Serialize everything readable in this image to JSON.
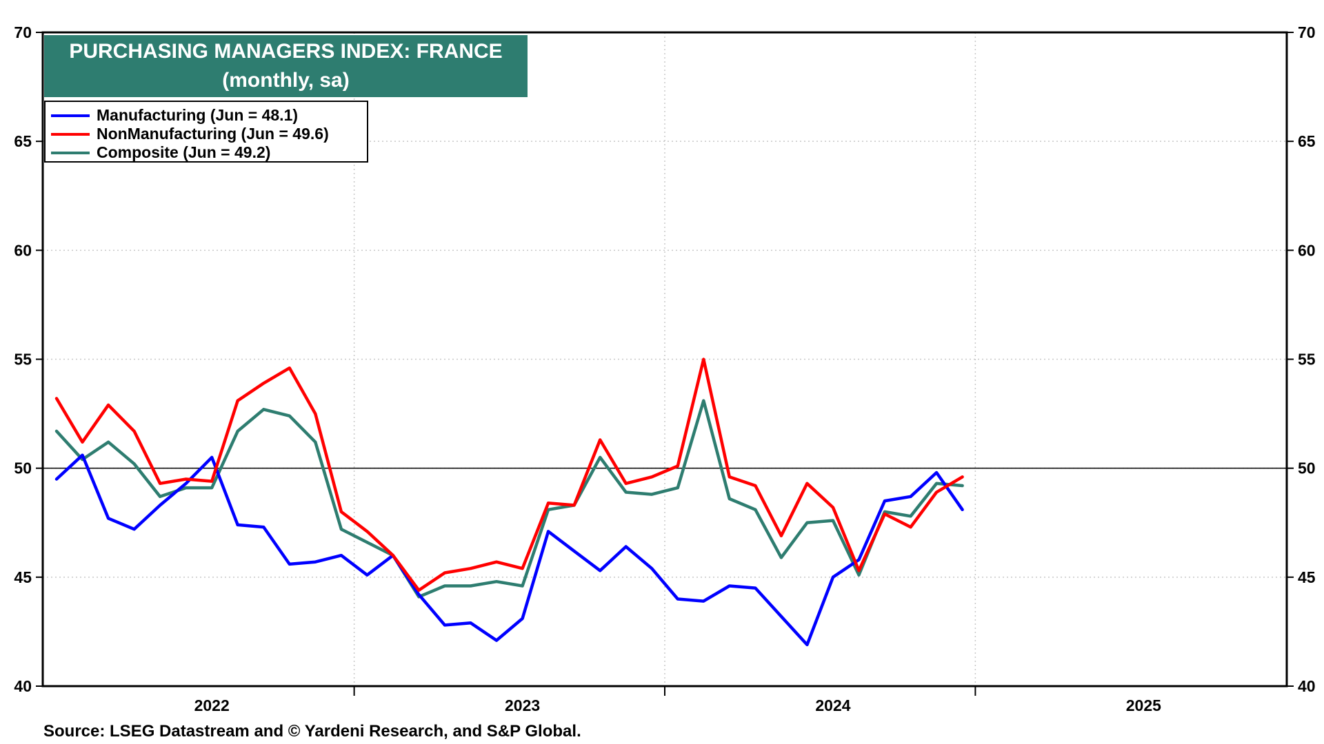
{
  "chart_data": {
    "type": "line",
    "title": "PURCHASING MANAGERS INDEX: FRANCE",
    "subtitle": "(monthly, sa)",
    "ylim": [
      40,
      70
    ],
    "yticks": [
      40,
      45,
      50,
      55,
      60,
      65,
      70
    ],
    "y_axes": "left and right",
    "reference_line": 50,
    "grid": true,
    "legend_position": "top-left",
    "x_start": "2022-01",
    "x_end": "2025-12",
    "x_labels": [
      {
        "label": "2022",
        "x": "2022-07"
      },
      {
        "label": "2023",
        "x": "2023-07"
      },
      {
        "label": "2024",
        "x": "2024-07"
      },
      {
        "label": "2025",
        "x": "2025-07"
      }
    ],
    "x_dividers": [
      "2022-12",
      "2023-12",
      "2024-12"
    ],
    "series": [
      {
        "name": "Manufacturing",
        "legend": "Manufacturing (Jun = 48.1)",
        "color": "#0000ff",
        "start": "2022-01",
        "values": [
          49.5,
          50.6,
          47.7,
          47.2,
          48.3,
          49.3,
          50.5,
          47.4,
          47.3,
          45.6,
          45.7,
          46.0,
          45.1,
          46.0,
          44.2,
          42.8,
          42.9,
          42.1,
          43.1,
          47.1,
          46.2,
          45.3,
          46.4,
          45.4,
          44.0,
          43.9,
          44.6,
          44.5,
          43.2,
          41.9,
          45.0,
          45.8,
          48.5,
          48.7,
          49.8,
          48.1
        ]
      },
      {
        "name": "NonManufacturing",
        "legend": "NonManufacturing (Jun = 49.6)",
        "color": "#ff0000",
        "start": "2022-01",
        "values": [
          53.2,
          51.2,
          52.9,
          51.7,
          49.3,
          49.5,
          49.4,
          53.1,
          53.9,
          54.6,
          52.5,
          48.0,
          47.1,
          46.0,
          44.4,
          45.2,
          45.4,
          45.7,
          45.4,
          48.4,
          48.3,
          51.3,
          49.3,
          49.6,
          50.1,
          55.0,
          49.6,
          49.2,
          46.9,
          49.3,
          48.2,
          45.3,
          47.9,
          47.3,
          48.9,
          49.6
        ]
      },
      {
        "name": "Composite",
        "legend": "Composite (Jun = 49.2)",
        "color": "#2e7d70",
        "start": "2022-01",
        "values": [
          51.7,
          50.4,
          51.2,
          50.2,
          48.7,
          49.1,
          49.1,
          51.7,
          52.7,
          52.4,
          51.2,
          47.2,
          46.6,
          46.0,
          44.1,
          44.6,
          44.6,
          44.8,
          44.6,
          48.1,
          48.3,
          50.5,
          48.9,
          48.8,
          49.1,
          53.1,
          48.6,
          48.1,
          45.9,
          47.5,
          47.6,
          45.1,
          48.0,
          47.8,
          49.3,
          49.2
        ]
      }
    ]
  },
  "source": "Source: LSEG Datastream and © Yardeni Research, and S&P Global."
}
